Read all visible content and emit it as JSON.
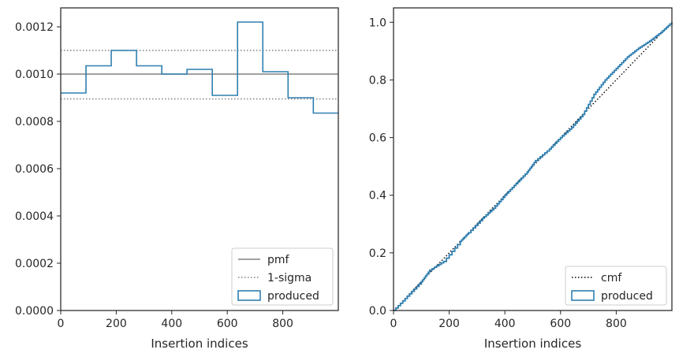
{
  "colors": {
    "produced": "#2f7fb1",
    "pmf": "#808080",
    "sigma": "#808080",
    "cmf": "#000000",
    "axes": "#262626"
  },
  "chart_data": [
    {
      "type": "histogram-step",
      "xlabel": "Insertion indices",
      "xlim": [
        0,
        1000
      ],
      "ylim": [
        0,
        0.00128
      ],
      "xticks": [
        0,
        200,
        400,
        600,
        800
      ],
      "xtick_labels": [
        "0",
        "200",
        "400",
        "600",
        "800"
      ],
      "yticks": [
        0,
        0.0002,
        0.0004,
        0.0006,
        0.0008,
        0.001,
        0.0012
      ],
      "ytick_labels": [
        "0.0000",
        "0.0002",
        "0.0004",
        "0.0006",
        "0.0008",
        "0.0010",
        "0.0012"
      ],
      "bin_edges": [
        0,
        91,
        182,
        273,
        364,
        455,
        546,
        637,
        728,
        819,
        910,
        1000
      ],
      "produced": [
        0.00092,
        0.001035,
        0.0011,
        0.001035,
        0.001,
        0.00102,
        0.00091,
        0.00122,
        0.00101,
        0.0009,
        0.000835
      ],
      "pmf": 0.001,
      "sigma_upper": 0.0011,
      "sigma_lower": 0.000895,
      "legend_position": "lower right",
      "legend": [
        {
          "key": "pmf",
          "label": "pmf",
          "style": "solid"
        },
        {
          "key": "sigma",
          "label": "1-sigma",
          "style": "dotted"
        },
        {
          "key": "produced",
          "label": "produced",
          "style": "patch"
        }
      ]
    },
    {
      "type": "cumulative-step",
      "xlabel": "Insertion indices",
      "xlim": [
        0,
        1000
      ],
      "ylim": [
        0,
        1.05
      ],
      "xticks": [
        0,
        200,
        400,
        600,
        800
      ],
      "xtick_labels": [
        "0",
        "200",
        "400",
        "600",
        "800"
      ],
      "yticks": [
        0,
        0.2,
        0.4,
        0.6,
        0.8,
        1.0
      ],
      "ytick_labels": [
        "0.0",
        "0.2",
        "0.4",
        "0.6",
        "0.8",
        "1.0"
      ],
      "produced_points": [
        [
          0,
          0
        ],
        [
          50,
          0.05
        ],
        [
          100,
          0.1
        ],
        [
          130,
          0.14
        ],
        [
          180,
          0.17
        ],
        [
          240,
          0.24
        ],
        [
          270,
          0.27
        ],
        [
          320,
          0.32
        ],
        [
          360,
          0.355
        ],
        [
          400,
          0.4
        ],
        [
          440,
          0.44
        ],
        [
          480,
          0.48
        ],
        [
          510,
          0.52
        ],
        [
          560,
          0.56
        ],
        [
          600,
          0.6
        ],
        [
          640,
          0.635
        ],
        [
          680,
          0.68
        ],
        [
          720,
          0.75
        ],
        [
          760,
          0.8
        ],
        [
          800,
          0.84
        ],
        [
          840,
          0.88
        ],
        [
          880,
          0.91
        ],
        [
          920,
          0.935
        ],
        [
          960,
          0.965
        ],
        [
          1000,
          1.0
        ]
      ],
      "cmf_points": [
        [
          0,
          0
        ],
        [
          1000,
          1.0
        ]
      ],
      "legend_position": "lower right",
      "legend": [
        {
          "key": "cmf",
          "label": "cmf",
          "style": "dotted"
        },
        {
          "key": "produced",
          "label": "produced",
          "style": "patch"
        }
      ]
    }
  ]
}
